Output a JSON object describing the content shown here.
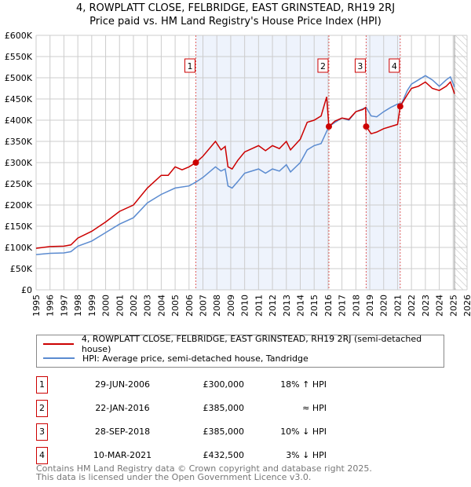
{
  "chart_data": {
    "type": "line",
    "title": "4, ROWPLATT CLOSE, FELBRIDGE, EAST GRINSTEAD, RH19 2RJ",
    "subtitle": "Price paid vs. HM Land Registry's House Price Index (HPI)",
    "xlim": [
      1995,
      2026
    ],
    "ylim": [
      0,
      600000
    ],
    "x_ticks": [
      "1995",
      "1996",
      "1997",
      "1998",
      "1999",
      "2000",
      "2001",
      "2002",
      "2003",
      "2004",
      "2005",
      "2006",
      "2007",
      "2008",
      "2009",
      "2010",
      "2011",
      "2012",
      "2013",
      "2014",
      "2015",
      "2016",
      "2017",
      "2018",
      "2019",
      "2020",
      "2021",
      "2022",
      "2023",
      "2024",
      "2025",
      "2026"
    ],
    "y_ticks": [
      "£0",
      "£50K",
      "£100K",
      "£150K",
      "£200K",
      "£250K",
      "£300K",
      "£350K",
      "£400K",
      "£450K",
      "£500K",
      "£550K",
      "£600K"
    ],
    "grid": true,
    "shaded_ranges": [
      [
        2006.49,
        2016.06
      ],
      [
        2018.74,
        2021.19
      ]
    ],
    "forecast_from": 2025.1,
    "series": [
      {
        "name": "4, ROWPLATT CLOSE, FELBRIDGE, EAST GRINSTEAD, RH19 2RJ (semi-detached house)",
        "color": "#cc0000",
        "points": [
          [
            1995,
            98
          ],
          [
            1996,
            102
          ],
          [
            1997,
            103
          ],
          [
            1997.5,
            106
          ],
          [
            1998,
            122
          ],
          [
            1999,
            138
          ],
          [
            2000,
            160
          ],
          [
            2001,
            185
          ],
          [
            2002,
            200
          ],
          [
            2003,
            240
          ],
          [
            2004,
            270
          ],
          [
            2004.5,
            270
          ],
          [
            2005,
            290
          ],
          [
            2005.5,
            283
          ],
          [
            2006,
            290
          ],
          [
            2006.49,
            300
          ],
          [
            2007,
            315
          ],
          [
            2007.9,
            350
          ],
          [
            2008.3,
            330
          ],
          [
            2008.6,
            338
          ],
          [
            2008.8,
            290
          ],
          [
            2009.1,
            285
          ],
          [
            2009.5,
            305
          ],
          [
            2010,
            325
          ],
          [
            2011,
            340
          ],
          [
            2011.5,
            328
          ],
          [
            2012,
            340
          ],
          [
            2012.5,
            333
          ],
          [
            2013,
            350
          ],
          [
            2013.3,
            330
          ],
          [
            2014,
            355
          ],
          [
            2014.5,
            395
          ],
          [
            2015,
            400
          ],
          [
            2015.5,
            410
          ],
          [
            2015.9,
            455
          ],
          [
            2016.06,
            385
          ],
          [
            2016.5,
            398
          ],
          [
            2017,
            405
          ],
          [
            2017.5,
            402
          ],
          [
            2018,
            420
          ],
          [
            2018.5,
            425
          ],
          [
            2018.7,
            430
          ],
          [
            2018.74,
            385
          ],
          [
            2019.1,
            368
          ],
          [
            2019.5,
            372
          ],
          [
            2020,
            380
          ],
          [
            2020.5,
            385
          ],
          [
            2021,
            390
          ],
          [
            2021.19,
            432.5
          ],
          [
            2021.7,
            460
          ],
          [
            2022,
            475
          ],
          [
            2022.5,
            480
          ],
          [
            2023,
            490
          ],
          [
            2023.5,
            475
          ],
          [
            2024,
            470
          ],
          [
            2024.5,
            480
          ],
          [
            2024.8,
            490
          ],
          [
            2025.1,
            462
          ]
        ]
      },
      {
        "name": "HPI: Average price, semi-detached house, Tandridge",
        "color": "#5b8bd0",
        "points": [
          [
            1995,
            83
          ],
          [
            1996,
            86
          ],
          [
            1997,
            87
          ],
          [
            1997.5,
            90
          ],
          [
            1998,
            103
          ],
          [
            1999,
            115
          ],
          [
            2000,
            135
          ],
          [
            2001,
            155
          ],
          [
            2002,
            170
          ],
          [
            2003,
            205
          ],
          [
            2004,
            225
          ],
          [
            2005,
            240
          ],
          [
            2006,
            245
          ],
          [
            2006.49,
            254
          ],
          [
            2007,
            265
          ],
          [
            2007.9,
            290
          ],
          [
            2008.3,
            280
          ],
          [
            2008.6,
            285
          ],
          [
            2008.8,
            245
          ],
          [
            2009.1,
            240
          ],
          [
            2009.5,
            255
          ],
          [
            2010,
            275
          ],
          [
            2011,
            285
          ],
          [
            2011.5,
            275
          ],
          [
            2012,
            285
          ],
          [
            2012.5,
            280
          ],
          [
            2013,
            295
          ],
          [
            2013.3,
            278
          ],
          [
            2014,
            300
          ],
          [
            2014.5,
            330
          ],
          [
            2015,
            340
          ],
          [
            2015.5,
            345
          ],
          [
            2016.06,
            385
          ],
          [
            2016.5,
            395
          ],
          [
            2017,
            405
          ],
          [
            2017.5,
            400
          ],
          [
            2018,
            420
          ],
          [
            2018.74,
            430
          ],
          [
            2019.1,
            410
          ],
          [
            2019.5,
            408
          ],
          [
            2020,
            420
          ],
          [
            2020.5,
            430
          ],
          [
            2021,
            438
          ],
          [
            2021.3,
            440
          ],
          [
            2021.7,
            470
          ],
          [
            2022,
            485
          ],
          [
            2022.5,
            495
          ],
          [
            2023,
            505
          ],
          [
            2023.5,
            495
          ],
          [
            2024,
            480
          ],
          [
            2024.5,
            495
          ],
          [
            2024.8,
            502
          ],
          [
            2025.1,
            478
          ]
        ]
      }
    ],
    "sales": [
      {
        "label": "1",
        "x": 2006.49,
        "price": 300000,
        "date": "29-JUN-2006",
        "price_text": "£300,000",
        "hpi": "18% ↑ HPI"
      },
      {
        "label": "2",
        "x": 2016.06,
        "price": 385000,
        "date": "22-JAN-2016",
        "price_text": "£385,000",
        "hpi": "≈ HPI"
      },
      {
        "label": "3",
        "x": 2018.74,
        "price": 385000,
        "date": "28-SEP-2018",
        "price_text": "£385,000",
        "hpi": "10% ↓ HPI"
      },
      {
        "label": "4",
        "x": 2021.19,
        "price": 432500,
        "date": "10-MAR-2021",
        "price_text": "£432,500",
        "hpi": "3% ↓ HPI"
      }
    ]
  },
  "footer": {
    "line1": "Contains HM Land Registry data © Crown copyright and database right 2025.",
    "line2": "This data is licensed under the Open Government Licence v3.0."
  }
}
